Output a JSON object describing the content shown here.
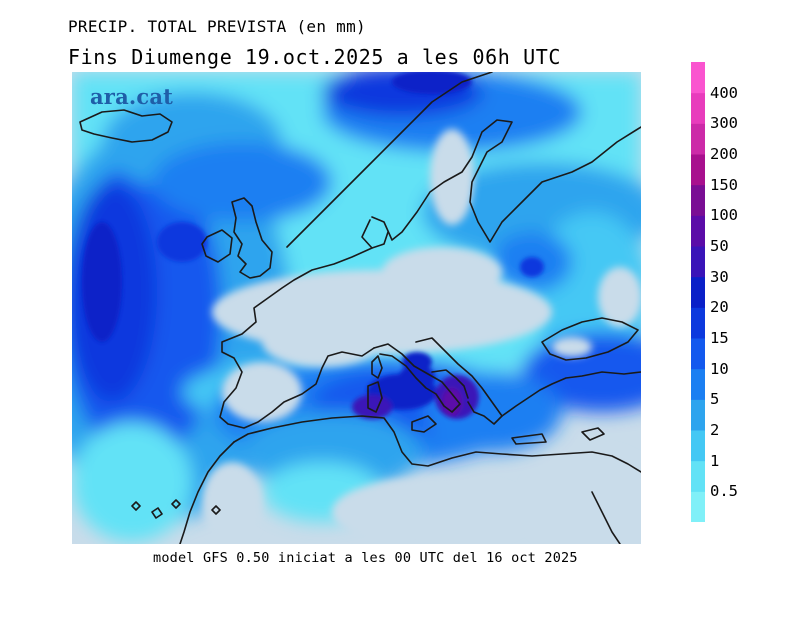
{
  "title": "PRECIP. TOTAL PREVISTA (en mm)",
  "subtitle": "Fins Diumenge 19.oct.2025 a les 06h UTC",
  "brand": "ara.cat",
  "footer": "model GFS 0.50 iniciat a les 00 UTC del 16 oct 2025",
  "colors": {
    "land_dry": "#c9dcea",
    "coast": "#1a1a1a",
    "bins": [
      "#80f0f8",
      "#62e2f6",
      "#44c8f4",
      "#2ea4ee",
      "#1b7ff2",
      "#1359ee",
      "#0c39de",
      "#0a20c8",
      "#3a14b8",
      "#5b0ca8",
      "#7a0e94",
      "#a8108e",
      "#cc2aa8",
      "#e83cbc",
      "#fa54cf"
    ]
  },
  "legend": {
    "labels": [
      "0.5",
      "1",
      "2",
      "5",
      "10",
      "15",
      "20",
      "30",
      "50",
      "100",
      "150",
      "200",
      "300",
      "400"
    ]
  }
}
